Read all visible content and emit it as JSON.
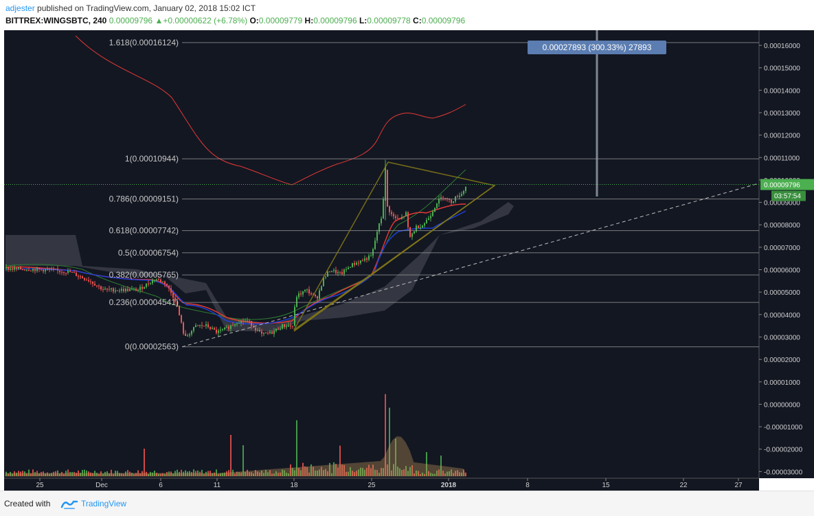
{
  "header": {
    "author": "adjester",
    "published_text": " published on TradingView.com, January 02, 2018 15:02 ICT",
    "symbol": "BITTREX:WINGSBTC, 240",
    "last": "0.00009796",
    "change": "+0.00000622 (+6.78%)",
    "open_label": "O:",
    "open": "0.00009779",
    "high_label": "H:",
    "high": "0.00009796",
    "low_label": "L:",
    "low": "0.00009778",
    "close_label": "C:",
    "close": "0.00009796"
  },
  "footer": {
    "created_with": "Created with",
    "brand": "TradingView"
  },
  "chart_data": {
    "type": "candlestick",
    "price_axis": [
      "0.00016000",
      "0.00015000",
      "0.00014000",
      "0.00013000",
      "0.00012000",
      "0.00011000",
      "0.00010000",
      "0.00009000",
      "0.00008000",
      "0.00007000",
      "0.00006000",
      "0.00005000",
      "0.00004000",
      "0.00003000",
      "0.00002000",
      "0.00001000",
      "0.00000000",
      "-0.00001000",
      "-0.00002000",
      "-0.00003000"
    ],
    "time_axis": [
      {
        "label": "25",
        "x": 58
      },
      {
        "label": "Dec",
        "x": 148
      },
      {
        "label": "6",
        "x": 234
      },
      {
        "label": "11",
        "x": 316
      },
      {
        "label": "18",
        "x": 428
      },
      {
        "label": "25",
        "x": 541
      },
      {
        "label": "2018",
        "x": 653
      },
      {
        "label": "8",
        "x": 768
      },
      {
        "label": "15",
        "x": 882
      },
      {
        "label": "22",
        "x": 995
      },
      {
        "label": "27",
        "x": 1075
      }
    ],
    "fib_levels": [
      {
        "ratio": "1.618",
        "label": "1.618(0.00016124)",
        "price": 0.00016124
      },
      {
        "ratio": "1",
        "label": "1(0.00010944)",
        "price": 0.00010944
      },
      {
        "ratio": "0.786",
        "label": "0.786(0.00009151)",
        "price": 9.151e-05
      },
      {
        "ratio": "0.618",
        "label": "0.618(0.00007742)",
        "price": 7.742e-05
      },
      {
        "ratio": "0.5",
        "label": "0.5(0.00006754)",
        "price": 6.754e-05
      },
      {
        "ratio": "0.382",
        "label": "0.382(0.00005765)",
        "price": 5.765e-05
      },
      {
        "ratio": "0.236",
        "label": "0.236(0.00004541)",
        "price": 4.541e-05
      },
      {
        "ratio": "0",
        "label": "0(0.00002563)",
        "price": 2.563e-05
      }
    ],
    "measure_label": "0.00027893 (300.33%) 27893",
    "last_price_tag": "0.00009796",
    "countdown_tag": "03:57:54",
    "colors": {
      "background": "#131722",
      "up": "#4caf50",
      "down": "#ef5350",
      "fib": "#9e9e9e",
      "tag_green": "#4caf50",
      "measure": "#5b7db1"
    }
  }
}
